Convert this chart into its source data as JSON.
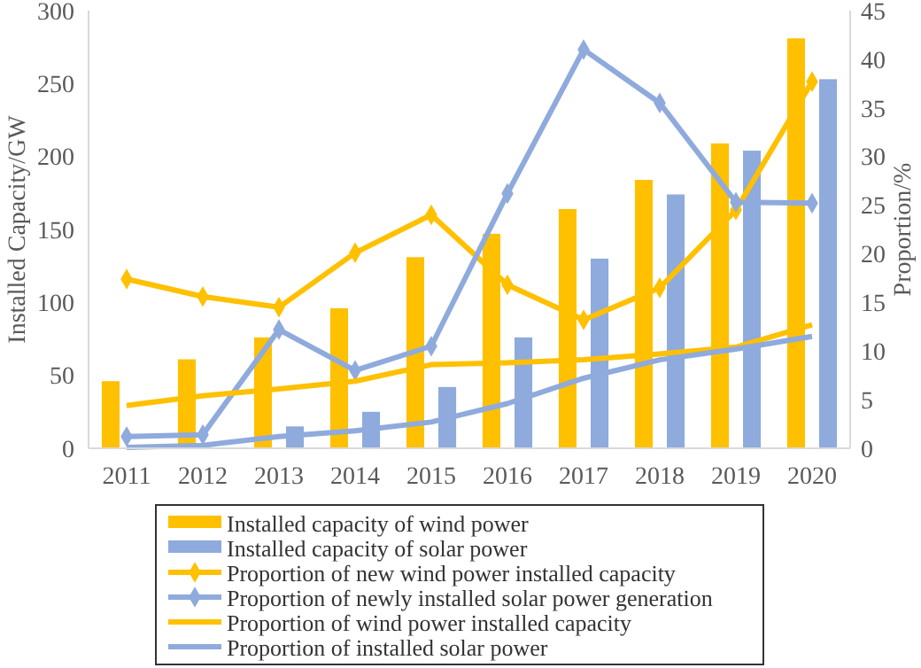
{
  "chart_data": {
    "type": "bar",
    "ylabel": "Installed Capacity/GW",
    "y2label": "Proportion/%",
    "categories": [
      "2011",
      "2012",
      "2013",
      "2014",
      "2015",
      "2016",
      "2017",
      "2018",
      "2019",
      "2020"
    ],
    "series": [
      {
        "name": "Installed capacity of wind power",
        "color": "#ffc000",
        "values": [
          46,
          61,
          76,
          96,
          131,
          147,
          164,
          184,
          209,
          281
        ]
      },
      {
        "name": "Installed capacity of solar power",
        "color": "#8faadc",
        "values": [
          null,
          null,
          15,
          25,
          42,
          76,
          130,
          174,
          204,
          253
        ]
      },
      {
        "name": "Proportion of new wind power installed capacity",
        "type": "line",
        "axis": "y2",
        "marker": "diamond",
        "color": "#ffc000",
        "values": [
          17.4,
          15.6,
          14.5,
          20.1,
          24,
          16.8,
          13.2,
          16.5,
          24.5,
          37.7
        ]
      },
      {
        "name": "Proportion of newly installed solar power generation",
        "type": "line",
        "axis": "y2",
        "marker": "diamond",
        "color": "#8faadc",
        "values": [
          1.2,
          1.4,
          12.2,
          8,
          10.5,
          26.2,
          41,
          35.5,
          25.3,
          25.2
        ]
      },
      {
        "name": "Proportion of wind power installed capacity",
        "type": "line",
        "axis": "y2",
        "marker": "none",
        "color": "#ffc000",
        "values": [
          4.4,
          5.4,
          6.1,
          6.9,
          8.6,
          8.8,
          9.1,
          9.7,
          10.4,
          12.7
        ]
      },
      {
        "name": "Proportion of installed solar power",
        "type": "line",
        "axis": "y2",
        "marker": "none",
        "color": "#8faadc",
        "values": [
          0.1,
          0.3,
          1.2,
          1.8,
          2.7,
          4.6,
          7.2,
          9.1,
          10.2,
          11.5
        ]
      }
    ],
    "ylim": [
      0,
      300
    ],
    "yticks": [
      0,
      50,
      100,
      150,
      200,
      250,
      300
    ],
    "y2lim": [
      0,
      45
    ],
    "y2ticks": [
      0,
      5,
      10,
      15,
      20,
      25,
      30,
      35,
      40,
      45
    ],
    "grid": false,
    "legend": "bottom"
  }
}
